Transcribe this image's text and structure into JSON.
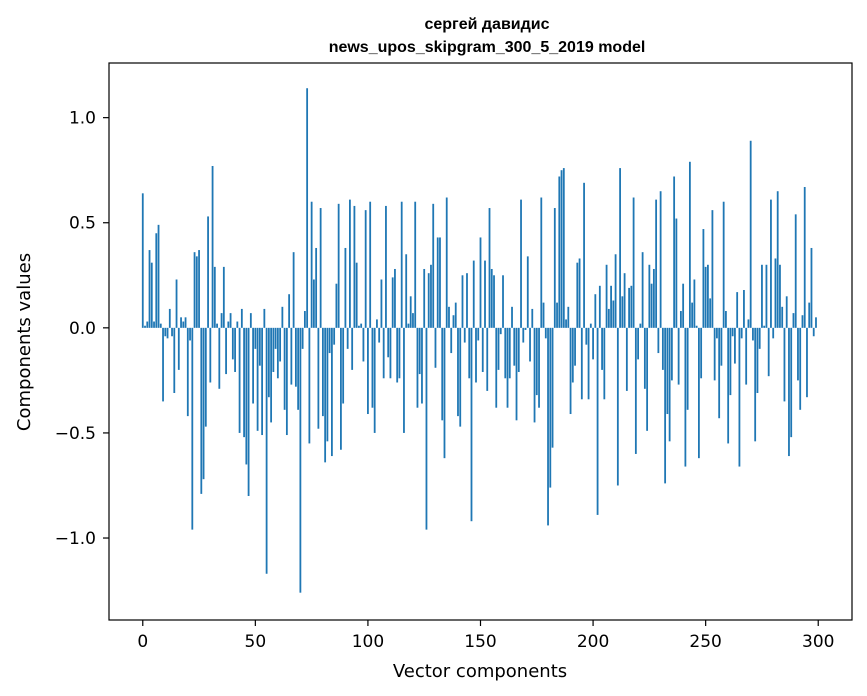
{
  "chart_data": {
    "type": "bar",
    "title_line1": "сергей давидис",
    "title_line2": "news_upos_skipgram_300_5_2019 model",
    "xlabel": "Vector components",
    "ylabel": "Components values",
    "xlim": [
      -15,
      315
    ],
    "ylim": [
      -1.39,
      1.26
    ],
    "x_ticks": [
      0,
      50,
      100,
      150,
      200,
      250,
      300
    ],
    "x_tick_labels": [
      "0",
      "50",
      "100",
      "150",
      "200",
      "250",
      "300"
    ],
    "y_ticks": [
      1.0,
      0.5,
      0.0,
      -0.5,
      -1.0
    ],
    "y_tick_labels": [
      "1.0",
      "0.5",
      "0.0",
      "−0.5",
      "−1.0"
    ],
    "bar_color": "#1f77b4",
    "values": [
      0.64,
      0.01,
      0.03,
      0.37,
      0.31,
      0.03,
      0.45,
      0.49,
      0.02,
      -0.35,
      -0.04,
      -0.05,
      0.09,
      -0.04,
      -0.31,
      0.23,
      -0.2,
      0.05,
      0.03,
      0.05,
      -0.42,
      -0.06,
      -0.96,
      0.36,
      0.34,
      0.37,
      -0.79,
      -0.72,
      -0.47,
      0.53,
      -0.26,
      0.77,
      0.29,
      0.02,
      -0.29,
      0.07,
      0.29,
      -0.22,
      0.03,
      0.07,
      -0.15,
      -0.21,
      0.03,
      -0.5,
      0.09,
      -0.52,
      -0.65,
      -0.8,
      0.07,
      -0.36,
      -0.1,
      -0.49,
      -0.18,
      -0.51,
      0.09,
      -1.17,
      -0.33,
      -0.45,
      -0.21,
      -0.1,
      -0.24,
      -0.16,
      0.1,
      -0.39,
      -0.51,
      0.16,
      -0.27,
      0.36,
      -0.28,
      -0.39,
      -1.26,
      -0.1,
      0.08,
      1.14,
      -0.55,
      0.6,
      0.23,
      0.38,
      -0.48,
      0.57,
      -0.42,
      -0.64,
      -0.54,
      -0.12,
      -0.61,
      -0.08,
      0.21,
      0.59,
      -0.58,
      -0.36,
      0.38,
      -0.1,
      0.61,
      -0.2,
      0.58,
      0.31,
      0.01,
      0.02,
      -0.16,
      0.56,
      -0.41,
      0.6,
      -0.38,
      -0.5,
      0.04,
      -0.07,
      0.23,
      -0.24,
      0.58,
      -0.14,
      -0.24,
      0.24,
      0.28,
      -0.26,
      -0.24,
      0.6,
      -0.5,
      0.35,
      0.02,
      0.15,
      0.07,
      0.6,
      -0.38,
      -0.22,
      -0.36,
      0.28,
      -0.96,
      0.26,
      0.3,
      0.59,
      -0.19,
      0.43,
      0.43,
      -0.44,
      -0.62,
      0.62,
      0.1,
      -0.12,
      0.06,
      0.12,
      -0.42,
      -0.47,
      0.25,
      -0.07,
      0.26,
      -0.24,
      -0.92,
      0.32,
      -0.26,
      -0.06,
      0.43,
      -0.21,
      0.32,
      -0.3,
      0.57,
      0.28,
      0.25,
      -0.38,
      -0.2,
      -0.03,
      0.25,
      -0.24,
      -0.38,
      -0.24,
      0.1,
      -0.18,
      -0.44,
      -0.21,
      0.61,
      -0.07,
      -0.01,
      0.34,
      -0.16,
      0.09,
      -0.45,
      -0.32,
      -0.38,
      0.62,
      0.12,
      -0.05,
      -0.94,
      -0.76,
      -0.57,
      0.57,
      0.12,
      0.72,
      0.75,
      0.76,
      0.04,
      0.1,
      -0.41,
      -0.26,
      -0.18,
      0.31,
      0.33,
      -0.34,
      0.69,
      -0.08,
      -0.34,
      0.02,
      -0.15,
      0.16,
      -0.89,
      0.2,
      -0.2,
      -0.34,
      0.3,
      0.09,
      0.2,
      0.13,
      0.35,
      -0.75,
      0.76,
      0.15,
      0.26,
      -0.3,
      0.19,
      0.2,
      0.62,
      -0.6,
      -0.15,
      0.02,
      0.36,
      -0.29,
      -0.49,
      0.3,
      0.21,
      0.28,
      0.61,
      -0.12,
      0.65,
      -0.2,
      -0.74,
      -0.41,
      -0.54,
      -0.25,
      0.72,
      0.52,
      -0.27,
      0.08,
      0.21,
      -0.66,
      -0.39,
      0.79,
      0.12,
      0.23,
      0.01,
      -0.62,
      -0.24,
      0.47,
      0.29,
      0.3,
      0.14,
      0.56,
      -0.25,
      -0.05,
      -0.43,
      -0.18,
      0.6,
      0.08,
      -0.55,
      -0.32,
      -0.04,
      -0.17,
      0.17,
      -0.66,
      -0.05,
      0.18,
      -0.27,
      0.04,
      0.89,
      -0.06,
      -0.54,
      -0.31,
      -0.1,
      0.3,
      0.01,
      0.3,
      -0.23,
      0.61,
      -0.05,
      0.33,
      0.65,
      0.3,
      0.1,
      -0.35,
      0.15,
      -0.61,
      -0.52,
      0.07,
      0.54,
      -0.25,
      -0.39,
      0.06,
      0.67,
      -0.33,
      0.12,
      0.38,
      -0.04,
      0.05
    ]
  }
}
